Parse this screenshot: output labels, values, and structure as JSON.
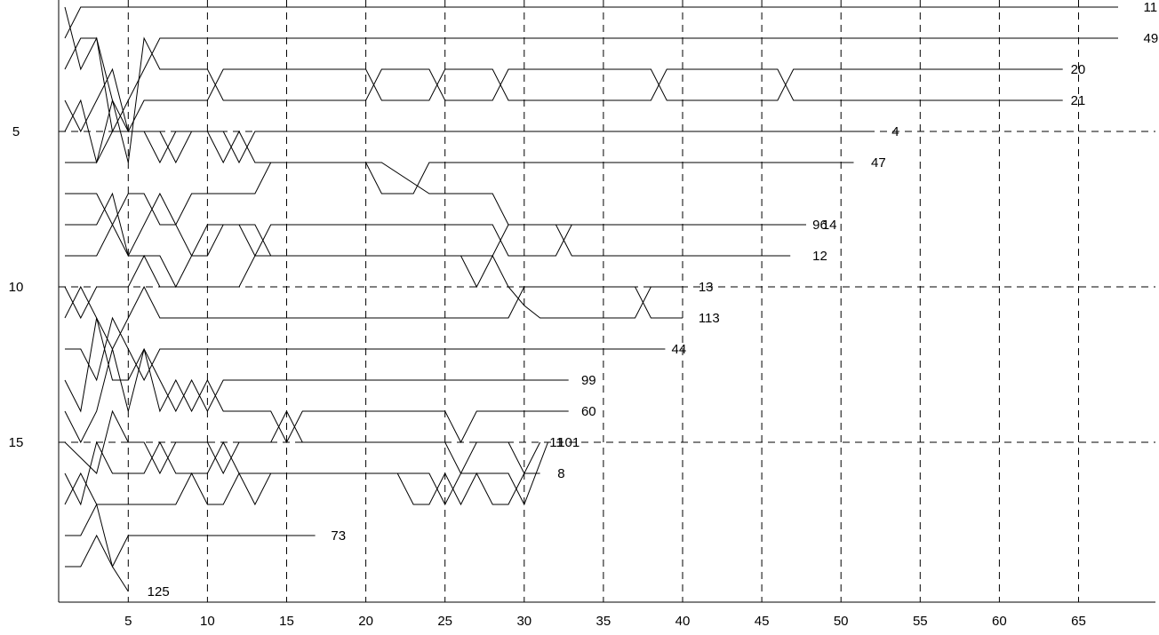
{
  "chart_data": {
    "type": "line",
    "title": "",
    "xlabel": "",
    "ylabel": "",
    "xlim": [
      0.5,
      66.5
    ],
    "ylim": [
      19.5,
      1
    ],
    "y_inverted": true,
    "grid": "dashed vertical every 5, dashed horizontal at 5/10/15",
    "x_ticks": [
      "5",
      "10",
      "15",
      "20",
      "25",
      "30",
      "35",
      "40",
      "45",
      "50",
      "55",
      "60",
      "65"
    ],
    "y_ticks": [
      "5",
      "10",
      "15"
    ],
    "series": [
      {
        "name": "11",
        "end_x": 67.5,
        "label_x": 69.1,
        "points": [
          [
            1,
            2
          ],
          [
            2,
            1
          ],
          [
            67.5,
            1
          ]
        ]
      },
      {
        "name": "49",
        "end_x": 67.5,
        "label_x": 69.1,
        "points": [
          [
            1,
            1
          ],
          [
            2,
            3
          ],
          [
            3,
            2
          ],
          [
            4,
            5
          ],
          [
            5,
            4
          ],
          [
            6,
            3
          ],
          [
            7,
            2
          ],
          [
            67.5,
            2
          ]
        ]
      },
      {
        "name": "20",
        "end_x": 64,
        "label_x": 64.5,
        "points": [
          [
            1,
            3
          ],
          [
            2,
            2
          ],
          [
            3,
            2
          ],
          [
            4,
            4
          ],
          [
            5,
            6
          ],
          [
            6,
            2
          ],
          [
            7,
            3
          ],
          [
            10,
            3
          ],
          [
            11,
            4
          ],
          [
            20,
            4
          ],
          [
            21,
            3
          ],
          [
            24,
            3
          ],
          [
            25,
            4
          ],
          [
            28,
            4
          ],
          [
            29,
            3
          ],
          [
            38,
            3
          ],
          [
            39,
            4
          ],
          [
            46,
            4
          ],
          [
            47,
            3
          ],
          [
            64,
            3
          ]
        ]
      },
      {
        "name": "21",
        "end_x": 64,
        "label_x": 64.5,
        "points": [
          [
            1,
            4
          ],
          [
            2,
            5
          ],
          [
            3,
            4
          ],
          [
            4,
            3
          ],
          [
            5,
            5
          ],
          [
            6,
            4
          ],
          [
            10,
            4
          ],
          [
            11,
            3
          ],
          [
            20,
            3
          ],
          [
            21,
            4
          ],
          [
            24,
            4
          ],
          [
            25,
            3
          ],
          [
            28,
            3
          ],
          [
            29,
            4
          ],
          [
            38,
            4
          ],
          [
            39,
            3
          ],
          [
            46,
            3
          ],
          [
            47,
            4
          ],
          [
            64,
            4
          ]
        ]
      },
      {
        "name": "4",
        "end_x": 51.8,
        "label_x": 53.2,
        "points": [
          [
            1,
            5
          ],
          [
            2,
            4
          ],
          [
            3,
            6
          ],
          [
            4,
            5
          ],
          [
            7,
            5
          ],
          [
            8,
            6
          ],
          [
            9,
            5
          ],
          [
            11,
            5
          ],
          [
            12,
            6
          ],
          [
            13,
            5
          ],
          [
            51.8,
            5
          ]
        ]
      },
      {
        "name": "47",
        "end_x": 50.8,
        "label_x": 51.9,
        "points": [
          [
            1,
            6
          ],
          [
            3,
            6
          ],
          [
            4,
            4
          ],
          [
            5,
            5
          ],
          [
            6,
            5
          ],
          [
            7,
            6
          ],
          [
            8,
            5
          ],
          [
            10,
            5
          ],
          [
            11,
            6
          ],
          [
            12,
            5
          ],
          [
            13,
            6
          ],
          [
            20,
            6
          ],
          [
            21,
            7
          ],
          [
            23,
            7
          ],
          [
            24,
            6
          ],
          [
            50.8,
            6
          ]
        ]
      },
      {
        "name": "14",
        "end_x": 47.8,
        "label_x": 48.8,
        "points": [
          [
            1,
            7
          ],
          [
            3,
            7
          ],
          [
            4,
            8
          ],
          [
            5,
            7
          ],
          [
            6,
            7
          ],
          [
            7,
            8
          ],
          [
            8,
            8
          ],
          [
            9,
            7
          ],
          [
            13,
            7
          ],
          [
            14,
            6
          ],
          [
            20,
            6
          ],
          [
            21,
            6
          ],
          [
            24,
            7
          ],
          [
            28,
            7
          ],
          [
            29,
            8
          ],
          [
            47.8,
            8
          ]
        ]
      },
      {
        "name": "12",
        "end_x": 46.8,
        "label_x": 48.2,
        "points": [
          [
            1,
            8
          ],
          [
            3,
            8
          ],
          [
            4,
            7
          ],
          [
            5,
            9
          ],
          [
            6,
            8
          ],
          [
            7,
            7
          ],
          [
            8,
            8
          ],
          [
            9,
            9
          ],
          [
            10,
            9
          ],
          [
            11,
            8
          ],
          [
            13,
            8
          ],
          [
            14,
            9
          ],
          [
            28,
            9
          ],
          [
            29,
            8
          ],
          [
            32,
            8
          ],
          [
            33,
            9
          ],
          [
            46.8,
            9
          ]
        ]
      },
      {
        "name": "96",
        "end_x": 46.8,
        "label_x": 48.2,
        "points": [
          [
            1,
            9
          ],
          [
            3,
            9
          ],
          [
            4,
            8
          ],
          [
            5,
            9
          ],
          [
            6,
            9
          ],
          [
            7,
            9
          ],
          [
            8,
            10
          ],
          [
            9,
            9
          ],
          [
            10,
            8
          ],
          [
            12,
            8
          ],
          [
            13,
            9
          ],
          [
            14,
            8
          ],
          [
            28,
            8
          ],
          [
            29,
            9
          ],
          [
            32,
            9
          ],
          [
            33,
            8
          ],
          [
            46.8,
            8
          ]
        ]
      },
      {
        "name": "13",
        "end_x": 40,
        "label_x": 41,
        "points": [
          [
            1,
            10
          ],
          [
            2,
            11
          ],
          [
            3,
            10
          ],
          [
            5,
            10
          ],
          [
            6,
            9
          ],
          [
            7,
            10
          ],
          [
            12,
            10
          ],
          [
            13,
            9
          ],
          [
            26,
            9
          ],
          [
            27,
            10
          ],
          [
            28,
            9
          ],
          [
            29,
            10
          ],
          [
            30,
            10.6
          ],
          [
            31,
            11
          ],
          [
            37,
            11
          ],
          [
            38,
            10
          ],
          [
            40,
            10
          ]
        ]
      },
      {
        "name": "113",
        "end_x": 40,
        "label_x": 41,
        "points": [
          [
            1,
            11
          ],
          [
            2,
            10
          ],
          [
            4,
            12
          ],
          [
            5,
            11
          ],
          [
            6,
            10
          ],
          [
            7,
            11
          ],
          [
            29,
            11
          ],
          [
            30,
            10
          ],
          [
            37,
            10
          ],
          [
            38,
            11
          ],
          [
            40,
            11
          ]
        ]
      },
      {
        "name": "44",
        "end_x": 38.9,
        "label_x": 39.3,
        "points": [
          [
            1,
            12
          ],
          [
            2,
            12
          ],
          [
            3,
            13
          ],
          [
            4,
            11
          ],
          [
            5,
            12
          ],
          [
            6,
            13
          ],
          [
            7,
            12
          ],
          [
            38.9,
            12
          ]
        ]
      },
      {
        "name": "99",
        "end_x": 32.8,
        "label_x": 33.6,
        "points": [
          [
            1,
            13
          ],
          [
            2,
            14
          ],
          [
            3,
            11
          ],
          [
            4,
            13
          ],
          [
            5,
            13
          ],
          [
            6,
            12
          ],
          [
            7,
            13
          ],
          [
            8,
            14
          ],
          [
            9,
            13
          ],
          [
            10,
            14
          ],
          [
            11,
            13
          ],
          [
            32.8,
            13
          ]
        ]
      },
      {
        "name": "60",
        "end_x": 32.8,
        "label_x": 33.6,
        "points": [
          [
            1,
            14
          ],
          [
            2,
            15
          ],
          [
            3,
            14
          ],
          [
            4,
            12
          ],
          [
            5,
            14
          ],
          [
            6,
            12
          ],
          [
            7,
            14
          ],
          [
            8,
            13
          ],
          [
            9,
            14
          ],
          [
            10,
            13
          ],
          [
            11,
            14
          ],
          [
            14,
            14
          ],
          [
            15,
            15
          ],
          [
            16,
            14
          ],
          [
            25,
            14
          ],
          [
            26,
            15
          ],
          [
            27,
            14
          ],
          [
            32.8,
            14
          ]
        ]
      },
      {
        "name": "11",
        "end_x": 31.2,
        "label_x": 31.6,
        "points": [
          [
            1,
            15
          ],
          [
            3,
            16
          ],
          [
            4,
            14
          ],
          [
            5,
            15
          ],
          [
            6,
            15
          ],
          [
            7,
            16
          ],
          [
            8,
            15
          ],
          [
            10,
            15
          ],
          [
            11,
            16
          ],
          [
            12,
            15
          ],
          [
            14,
            15
          ],
          [
            15,
            14
          ],
          [
            16,
            15
          ],
          [
            25,
            15
          ],
          [
            26,
            16
          ],
          [
            27,
            15
          ],
          [
            29,
            15
          ],
          [
            30,
            16
          ],
          [
            31,
            15
          ]
        ]
      },
      {
        "name": "101",
        "end_x": 31.5,
        "label_x": 32.1,
        "points": [
          [
            1,
            16
          ],
          [
            2,
            17
          ],
          [
            3,
            15
          ],
          [
            4,
            16
          ],
          [
            5,
            16
          ],
          [
            6,
            16
          ],
          [
            7,
            15
          ],
          [
            8,
            16
          ],
          [
            10,
            16
          ],
          [
            11,
            15
          ],
          [
            12,
            16
          ],
          [
            13,
            17
          ],
          [
            14,
            16
          ],
          [
            24,
            16
          ],
          [
            25,
            17
          ],
          [
            26,
            16
          ],
          [
            29,
            16
          ],
          [
            30,
            17
          ],
          [
            31.5,
            15
          ]
        ]
      },
      {
        "name": "8",
        "end_x": 31,
        "label_x": 32.1,
        "points": [
          [
            1,
            17
          ],
          [
            2,
            16
          ],
          [
            3,
            17
          ],
          [
            4,
            17
          ],
          [
            5,
            17
          ],
          [
            6,
            17
          ],
          [
            7,
            17
          ],
          [
            8,
            17
          ],
          [
            9,
            16
          ],
          [
            10,
            17
          ],
          [
            11,
            17
          ],
          [
            12,
            16
          ],
          [
            13,
            16
          ],
          [
            14,
            16
          ],
          [
            22,
            16
          ],
          [
            23,
            17
          ],
          [
            24,
            17
          ],
          [
            25,
            16
          ],
          [
            26,
            17
          ],
          [
            27,
            16
          ],
          [
            28,
            17
          ],
          [
            29,
            17
          ],
          [
            30,
            16
          ],
          [
            31,
            16
          ]
        ]
      },
      {
        "name": "73",
        "end_x": 16.8,
        "label_x": 17.8,
        "points": [
          [
            1,
            18
          ],
          [
            2,
            18
          ],
          [
            3,
            17
          ],
          [
            4,
            19
          ],
          [
            5,
            18
          ],
          [
            16.8,
            18
          ]
        ]
      },
      {
        "name": "125",
        "end_x": 5,
        "label_x": 6.2,
        "points": [
          [
            1,
            19
          ],
          [
            2,
            19
          ],
          [
            3,
            18
          ],
          [
            4,
            19
          ],
          [
            5,
            19.8
          ]
        ]
      }
    ]
  }
}
